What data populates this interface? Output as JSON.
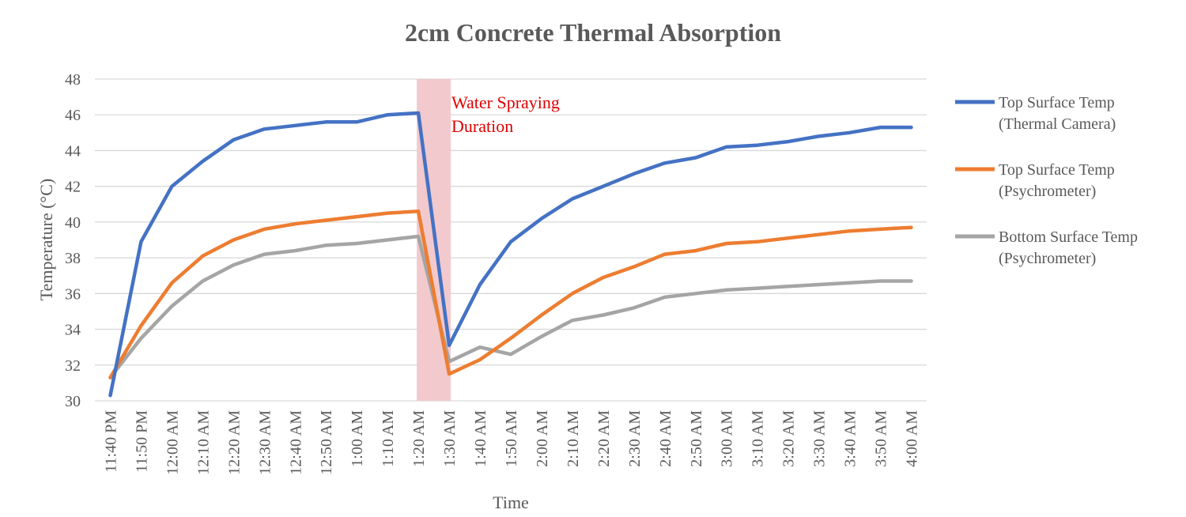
{
  "chart_data": {
    "type": "line",
    "title": "2cm Concrete Thermal Absorption",
    "xlabel": "Time",
    "ylabel": "Temperature (°C)",
    "ylim": [
      30,
      48
    ],
    "yticks": [
      30,
      32,
      34,
      36,
      38,
      40,
      42,
      44,
      46,
      48
    ],
    "grid": true,
    "legend_position": "right",
    "categories": [
      "11:40 PM",
      "11:50 PM",
      "12:00 AM",
      "12:10 AM",
      "12:20 AM",
      "12:30 AM",
      "12:40 AM",
      "12:50 AM",
      "1:00 AM",
      "1:10 AM",
      "1:20 AM",
      "1:30 AM",
      "1:40 AM",
      "1:50 AM",
      "2:00 AM",
      "2:10 AM",
      "2:20 AM",
      "2:30 AM",
      "2:40 AM",
      "2:50 AM",
      "3:00 AM",
      "3:10 AM",
      "3:20 AM",
      "3:30 AM",
      "3:40 AM",
      "3:50 AM",
      "4:00 AM"
    ],
    "series": [
      {
        "name_line1": "Top Surface Temp",
        "name_line2": "(Thermal Camera)",
        "color": "#4472c4",
        "values": [
          30.3,
          38.9,
          42.0,
          43.4,
          44.6,
          45.2,
          45.4,
          45.6,
          45.6,
          46.0,
          46.1,
          33.1,
          36.5,
          38.9,
          40.2,
          41.3,
          42.0,
          42.7,
          43.3,
          43.6,
          44.2,
          44.3,
          44.5,
          44.8,
          45.0,
          45.3,
          45.3
        ]
      },
      {
        "name_line1": "Top Surface Temp",
        "name_line2": "(Psychrometer)",
        "color": "#ed7d31",
        "values": [
          31.3,
          34.2,
          36.6,
          38.1,
          39.0,
          39.6,
          39.9,
          40.1,
          40.3,
          40.5,
          40.6,
          31.5,
          32.3,
          33.5,
          34.8,
          36.0,
          36.9,
          37.5,
          38.2,
          38.4,
          38.8,
          38.9,
          39.1,
          39.3,
          39.5,
          39.6,
          39.7
        ]
      },
      {
        "name_line1": "Bottom Surface Temp",
        "name_line2": "(Psychrometer)",
        "color": "#a5a5a5",
        "values": [
          31.3,
          33.5,
          35.3,
          36.7,
          37.6,
          38.2,
          38.4,
          38.7,
          38.8,
          39.0,
          39.2,
          32.2,
          33.0,
          32.6,
          33.6,
          34.5,
          34.8,
          35.2,
          35.8,
          36.0,
          36.2,
          36.3,
          36.4,
          36.5,
          36.6,
          36.7,
          36.7
        ]
      }
    ],
    "annotation": {
      "line1": "Water Spraying",
      "line2": "Duration",
      "color": "#e00000",
      "fill": "#f2c9cc",
      "from_category": "1:20 AM",
      "to_category": "1:30 AM"
    }
  }
}
